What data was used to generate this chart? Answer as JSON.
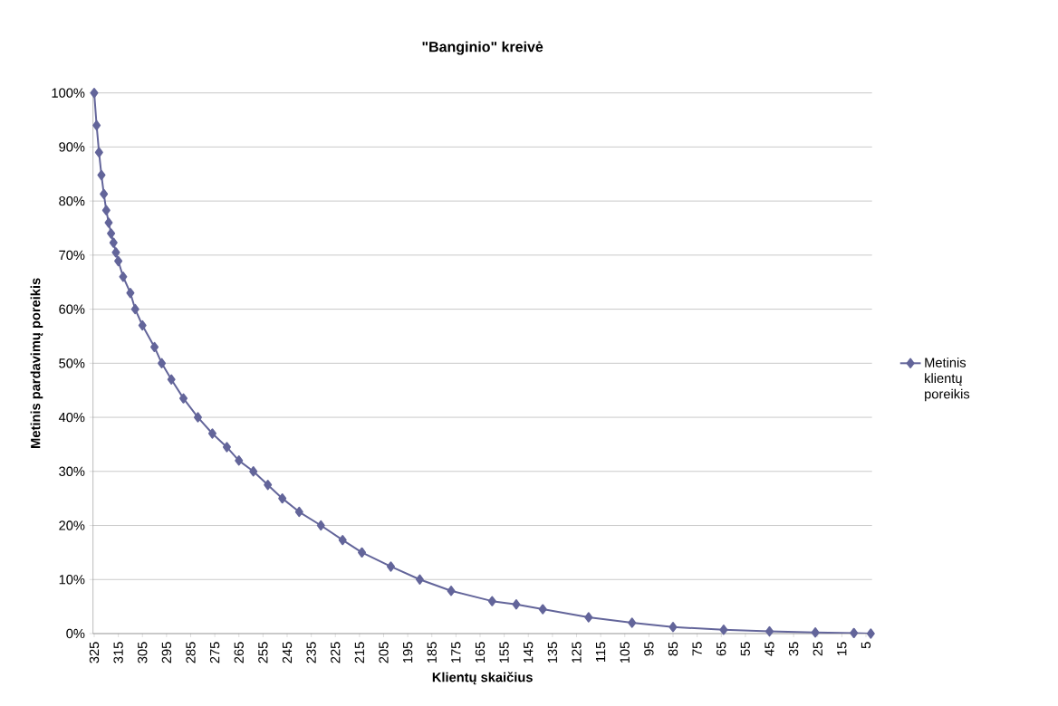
{
  "chart_data": {
    "type": "line",
    "title": "\"Banginio\" kreivė",
    "xlabel": "Klientų skaičius",
    "ylabel": "Metinis pardavimų poreikis",
    "xlim": [
      325.5,
      2.5
    ],
    "xticks": [
      325,
      315,
      305,
      295,
      285,
      275,
      265,
      255,
      245,
      235,
      225,
      215,
      205,
      195,
      185,
      175,
      165,
      155,
      145,
      135,
      125,
      115,
      105,
      95,
      85,
      75,
      65,
      55,
      45,
      35,
      25,
      15,
      5
    ],
    "ylim": [
      0,
      100
    ],
    "yticks": [
      {
        "value": 0,
        "label": "0%"
      },
      {
        "value": 10,
        "label": "10%"
      },
      {
        "value": 20,
        "label": "20%"
      },
      {
        "value": 30,
        "label": "30%"
      },
      {
        "value": 40,
        "label": "40%"
      },
      {
        "value": 50,
        "label": "50%"
      },
      {
        "value": 60,
        "label": "60%"
      },
      {
        "value": 70,
        "label": "70%"
      },
      {
        "value": 80,
        "label": "80%"
      },
      {
        "value": 90,
        "label": "90%"
      },
      {
        "value": 100,
        "label": "100%"
      }
    ],
    "grid": "y",
    "legend": "right",
    "marker": "diamond",
    "line_style": "solid",
    "x": [
      325,
      324,
      323,
      322,
      321,
      320,
      319,
      318,
      317,
      316,
      315,
      313,
      310,
      308,
      305,
      300,
      297,
      293,
      288,
      282,
      276,
      270,
      265,
      259,
      253,
      247,
      240,
      231,
      222,
      214,
      202,
      190,
      177,
      160,
      150,
      139,
      120,
      102,
      85,
      64,
      45,
      26,
      10,
      3
    ],
    "series": [
      {
        "name": "Metinis klientų poreikis",
        "color": "#63659a",
        "values": [
          100,
          94,
          89,
          84.8,
          81.3,
          78.3,
          76,
          74,
          72.3,
          70.5,
          68.9,
          66,
          63,
          60,
          57,
          53,
          50,
          47,
          43.5,
          40,
          37,
          34.5,
          32,
          30,
          27.5,
          25,
          22.5,
          20,
          17.3,
          15,
          12.4,
          10,
          7.9,
          6,
          5.4,
          4.5,
          3,
          2,
          1.2,
          0.7,
          0.4,
          0.2,
          0.1,
          0
        ]
      }
    ]
  }
}
